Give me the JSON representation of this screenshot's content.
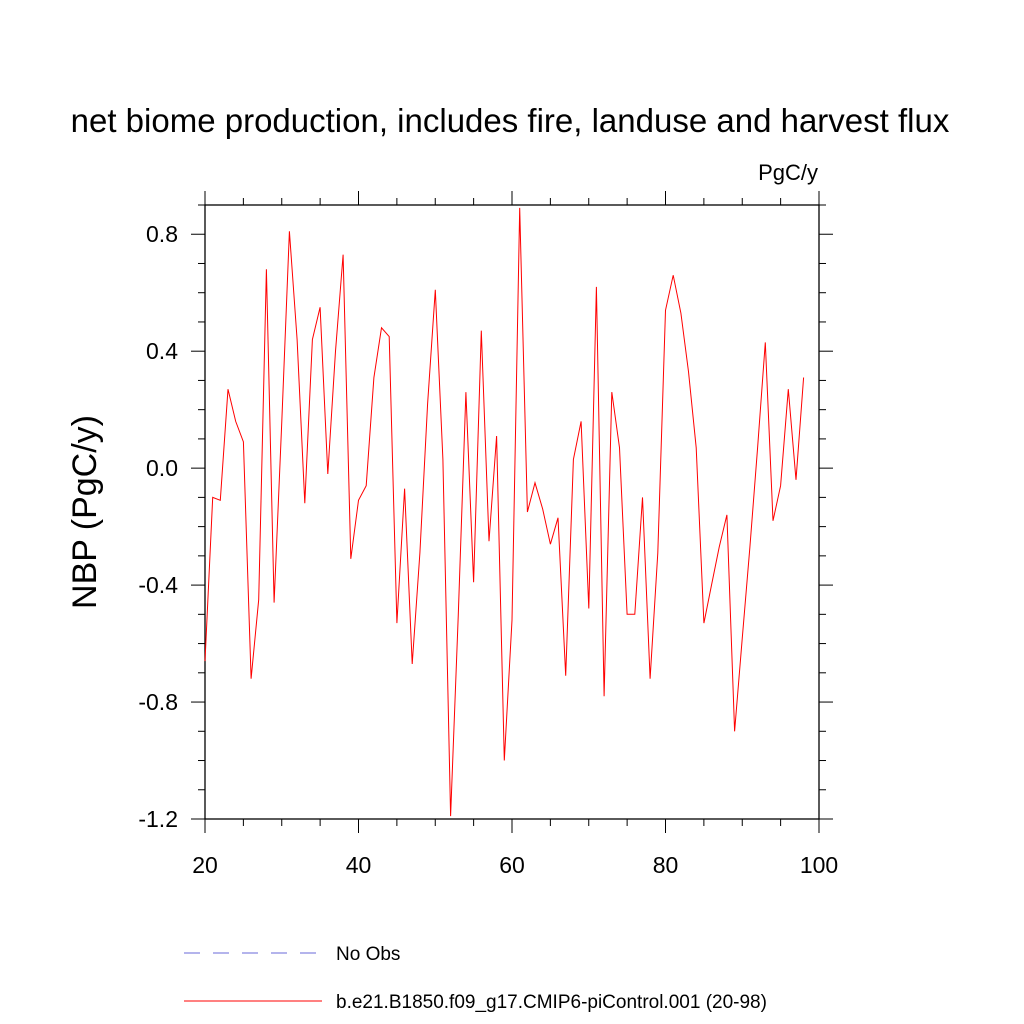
{
  "chart_data": {
    "type": "line",
    "title": "net biome production, includes fire, landuse and harvest flux",
    "units": "PgC/y",
    "xlabel": "",
    "ylabel": "NBP  (PgC/y)",
    "xlim": [
      20,
      100
    ],
    "ylim": [
      -1.2,
      0.9
    ],
    "x_ticks": [
      20,
      40,
      60,
      80,
      100
    ],
    "x_tick_labels": [
      "20",
      "40",
      "60",
      "80",
      "100"
    ],
    "y_ticks": [
      -1.2,
      -0.8,
      -0.4,
      0.0,
      0.4,
      0.8
    ],
    "y_tick_labels": [
      "-1.2",
      "-0.8",
      "-0.4",
      "0.0",
      "0.4",
      "0.8"
    ],
    "grid": false,
    "legend_position": "bottom",
    "series": [
      {
        "name": "b.e21.B1850.f09_g17.CMIP6-piControl.001 (20-98)",
        "color": "#ff0000",
        "style": "solid",
        "x": [
          20,
          21,
          22,
          23,
          24,
          25,
          26,
          27,
          28,
          29,
          30,
          31,
          32,
          33,
          34,
          35,
          36,
          37,
          38,
          39,
          40,
          41,
          42,
          43,
          44,
          45,
          46,
          47,
          48,
          49,
          50,
          51,
          52,
          53,
          54,
          55,
          56,
          57,
          58,
          59,
          60,
          61,
          62,
          63,
          64,
          65,
          66,
          67,
          68,
          69,
          70,
          71,
          72,
          73,
          74,
          75,
          76,
          77,
          78,
          79,
          80,
          81,
          82,
          83,
          84,
          85,
          86,
          87,
          88,
          89,
          90,
          91,
          92,
          93,
          94,
          95,
          96,
          97,
          98
        ],
        "values": [
          -0.66,
          -0.1,
          -0.11,
          0.27,
          0.16,
          0.09,
          -0.72,
          -0.45,
          0.68,
          -0.46,
          0.16,
          0.81,
          0.44,
          -0.12,
          0.44,
          0.55,
          -0.02,
          0.4,
          0.73,
          -0.31,
          -0.11,
          -0.06,
          0.31,
          0.48,
          0.45,
          -0.53,
          -0.07,
          -0.67,
          -0.29,
          0.22,
          0.61,
          0.03,
          -1.19,
          -0.5,
          0.26,
          -0.39,
          0.47,
          -0.25,
          0.11,
          -1.0,
          -0.52,
          0.89,
          -0.15,
          -0.05,
          -0.14,
          -0.26,
          -0.17,
          -0.71,
          0.03,
          0.16,
          -0.48,
          0.62,
          -0.78,
          0.26,
          0.07,
          -0.5,
          -0.5,
          -0.1,
          -0.72,
          -0.29,
          0.54,
          0.66,
          0.53,
          0.33,
          0.07,
          -0.53,
          -0.4,
          -0.27,
          -0.16,
          -0.9,
          -0.58,
          -0.27,
          0.07,
          0.43,
          -0.18,
          -0.06,
          0.27,
          -0.04,
          0.31
        ]
      }
    ],
    "legend": [
      {
        "label": "No Obs",
        "color": "#6a6ad8",
        "style": "dashed"
      },
      {
        "label": "b.e21.B1850.f09_g17.CMIP6-piControl.001 (20-98)",
        "color": "#ff0000",
        "style": "solid"
      }
    ]
  }
}
